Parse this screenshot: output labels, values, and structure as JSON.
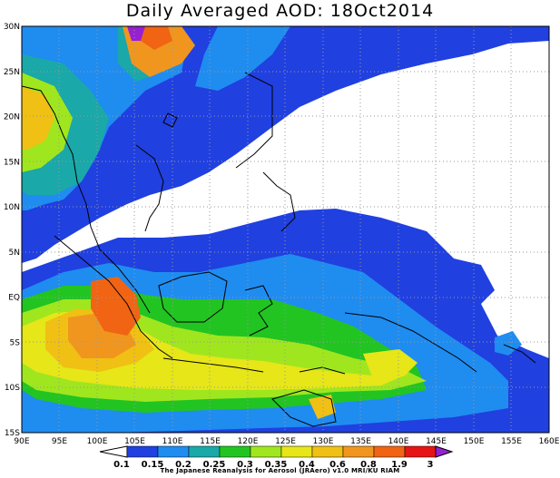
{
  "title": "Daily Averaged AOD: 18Oct2014",
  "credit": "The Japanese Reanalysis for Aerosol (JRAero) v1.0 MRI/KU RIAM",
  "map_data": {
    "region": {
      "lon_range": [
        90,
        160
      ],
      "lat_range": [
        -15,
        30
      ]
    },
    "lon_labels": [
      "90E",
      "95E",
      "100E",
      "105E",
      "110E",
      "115E",
      "120E",
      "125E",
      "130E",
      "135E",
      "140E",
      "145E",
      "150E",
      "155E",
      "160E"
    ],
    "lat_labels": [
      "30N",
      "25N",
      "20N",
      "15N",
      "10N",
      "5N",
      "EQ",
      "5S",
      "10S",
      "15S"
    ],
    "grid": "dotted"
  },
  "colorbar": {
    "levels": [
      "0.1",
      "0.15",
      "0.2",
      "0.25",
      "0.3",
      "0.35",
      "0.4",
      "0.6",
      "0.8",
      "1.9",
      "3"
    ],
    "colors": [
      "#2040e0",
      "#1f8cf0",
      "#1aa8a8",
      "#22c422",
      "#a0e61e",
      "#e6e619",
      "#f0c014",
      "#f0961e",
      "#f06414",
      "#e61414",
      "#9620d2"
    ]
  }
}
